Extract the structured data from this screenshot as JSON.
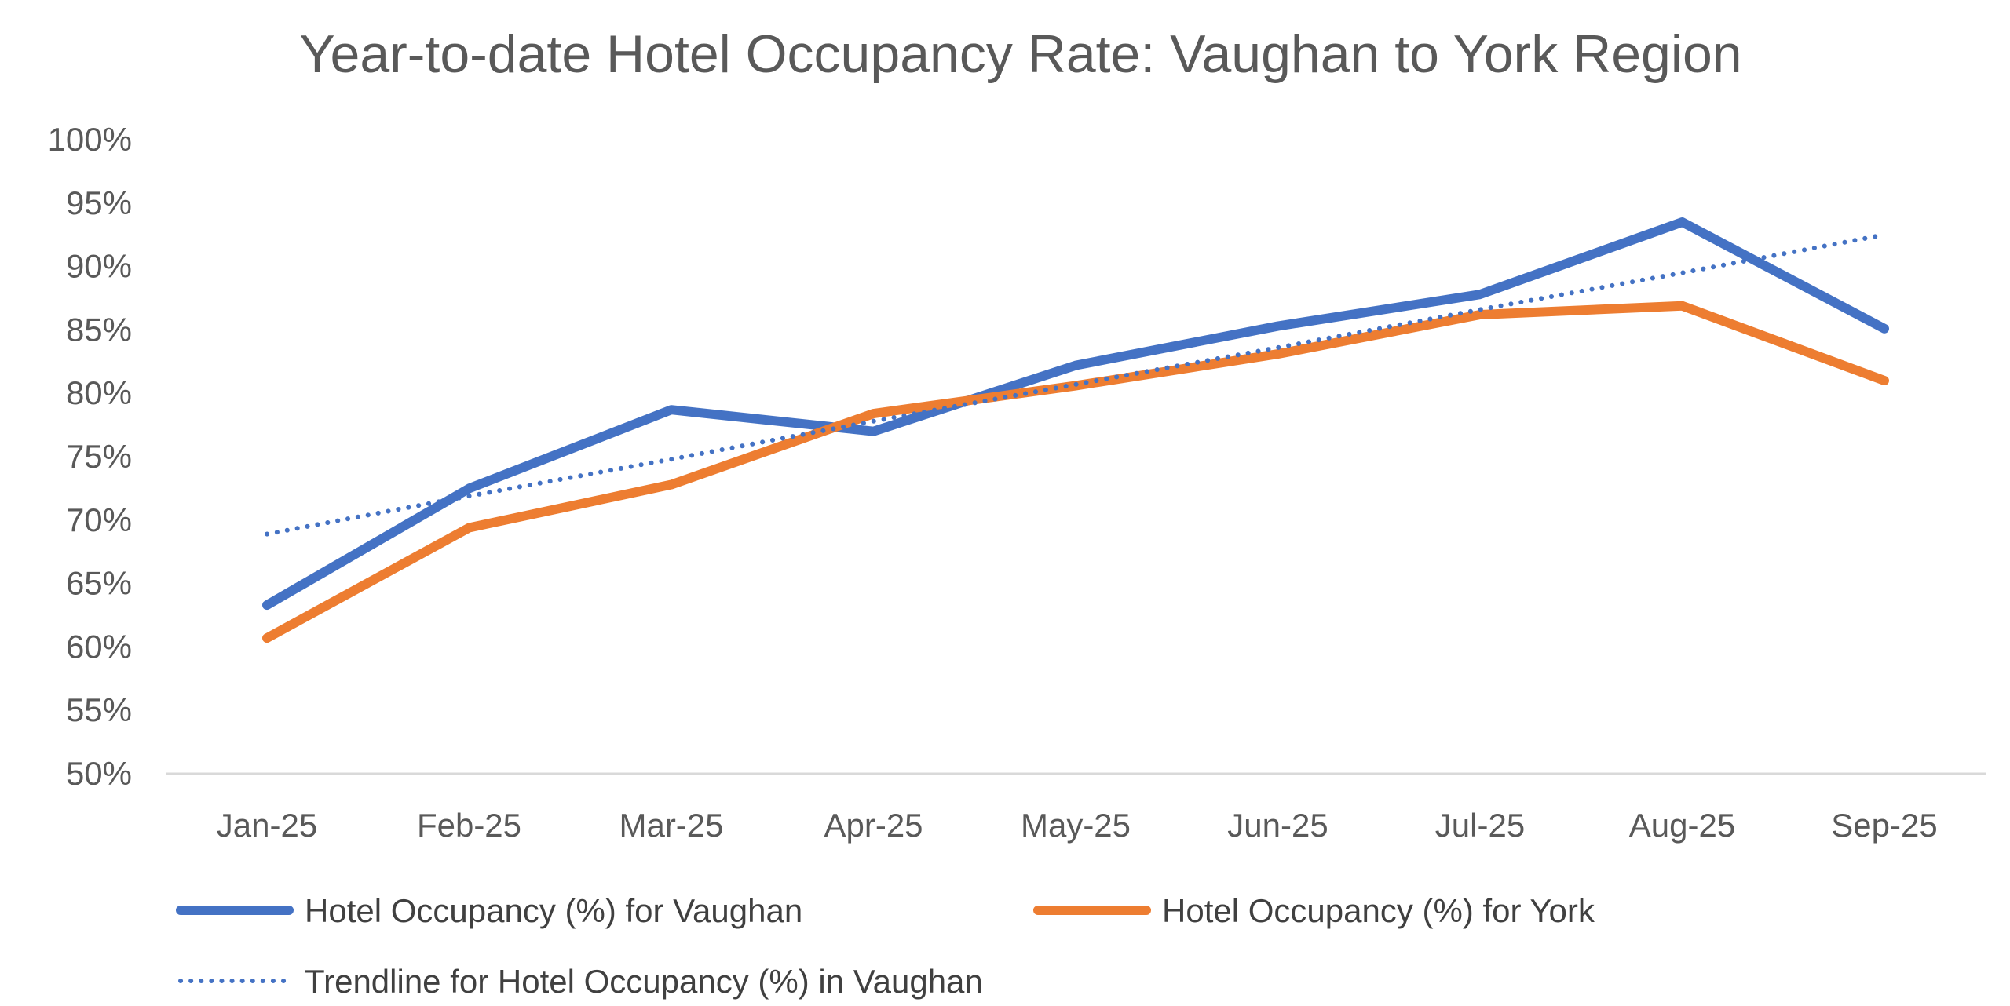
{
  "chart_data": {
    "type": "line",
    "title": "Year-to-date Hotel Occupancy Rate: Vaughan to York Region",
    "xlabel": "",
    "ylabel": "",
    "categories": [
      "Jan-25",
      "Feb-25",
      "Mar-25",
      "Apr-25",
      "May-25",
      "Jun-25",
      "Jul-25",
      "Aug-25",
      "Sep-25"
    ],
    "y_ticks": [
      "50%",
      "55%",
      "60%",
      "65%",
      "70%",
      "75%",
      "80%",
      "85%",
      "90%",
      "95%",
      "100%"
    ],
    "ylim": [
      50,
      100
    ],
    "grid": false,
    "legend_position": "bottom",
    "series": [
      {
        "name": "Hotel Occupancy (%) for Vaughan",
        "color": "#4472C4",
        "style": "solid",
        "values": [
          63.3,
          72.5,
          78.7,
          77.0,
          82.2,
          85.3,
          87.8,
          93.5,
          85.1
        ]
      },
      {
        "name": "Hotel Occupancy (%) for York",
        "color": "#ED7D31",
        "style": "solid",
        "values": [
          60.7,
          69.4,
          72.8,
          78.4,
          80.6,
          83.1,
          86.2,
          86.9,
          81.0
        ]
      },
      {
        "name": "Trendline for Hotel Occupancy (%) in Vaughan",
        "color": "#4472C4",
        "style": "dotted",
        "values": [
          68.9,
          71.9,
          74.8,
          77.8,
          80.7,
          83.6,
          86.6,
          89.5,
          92.5
        ]
      }
    ]
  }
}
